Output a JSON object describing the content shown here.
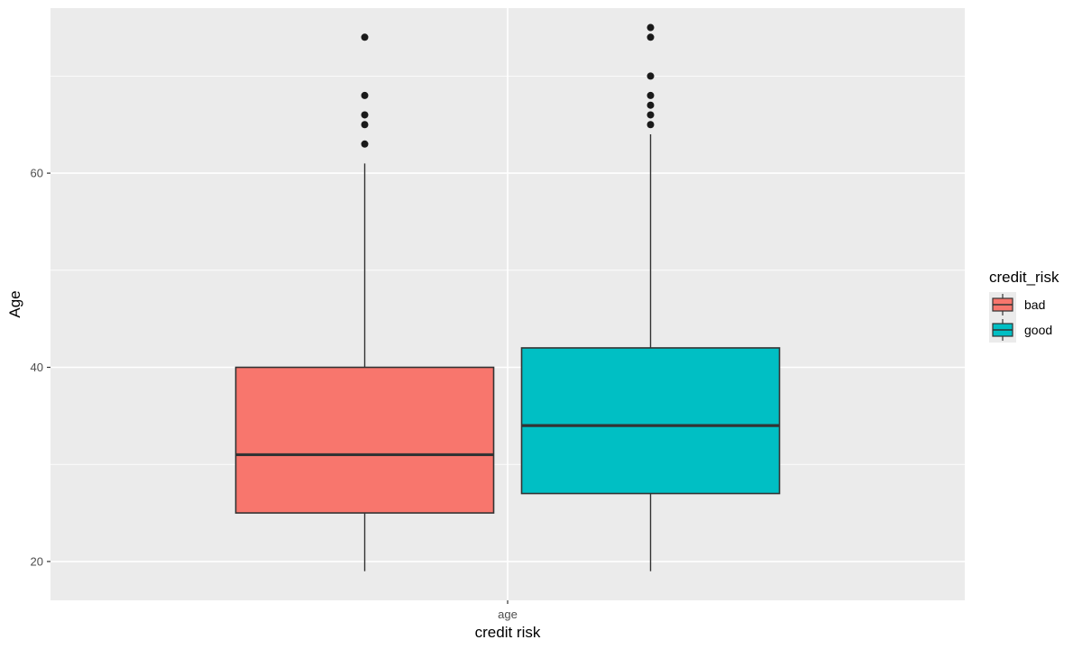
{
  "chart_data": {
    "type": "boxplot",
    "xlabel": "credit risk",
    "ylabel": "Age",
    "ylim": [
      16,
      77
    ],
    "y_ticks": [
      20,
      40,
      60
    ],
    "categories": [
      "age"
    ],
    "grid": true,
    "legend": {
      "title": "credit_risk",
      "position": "right",
      "entries": [
        {
          "label": "bad",
          "color": "#F8766D"
        },
        {
          "label": "good",
          "color": "#00BFC4"
        }
      ]
    },
    "series": [
      {
        "name": "bad",
        "color": "#F8766D",
        "q1": 25,
        "median": 31,
        "q3": 40,
        "whisker_low": 19,
        "whisker_high": 61,
        "outliers": [
          63,
          65,
          66,
          68,
          74
        ]
      },
      {
        "name": "good",
        "color": "#00BFC4",
        "q1": 27,
        "median": 34,
        "q3": 42,
        "whisker_low": 19,
        "whisker_high": 64,
        "outliers": [
          65,
          66,
          67,
          68,
          70,
          74,
          75
        ]
      }
    ]
  },
  "colors": {
    "panel_bg": "#EBEBEB",
    "grid": "#FFFFFF",
    "box_stroke": "#333333",
    "outlier": "#1a1a1a"
  }
}
